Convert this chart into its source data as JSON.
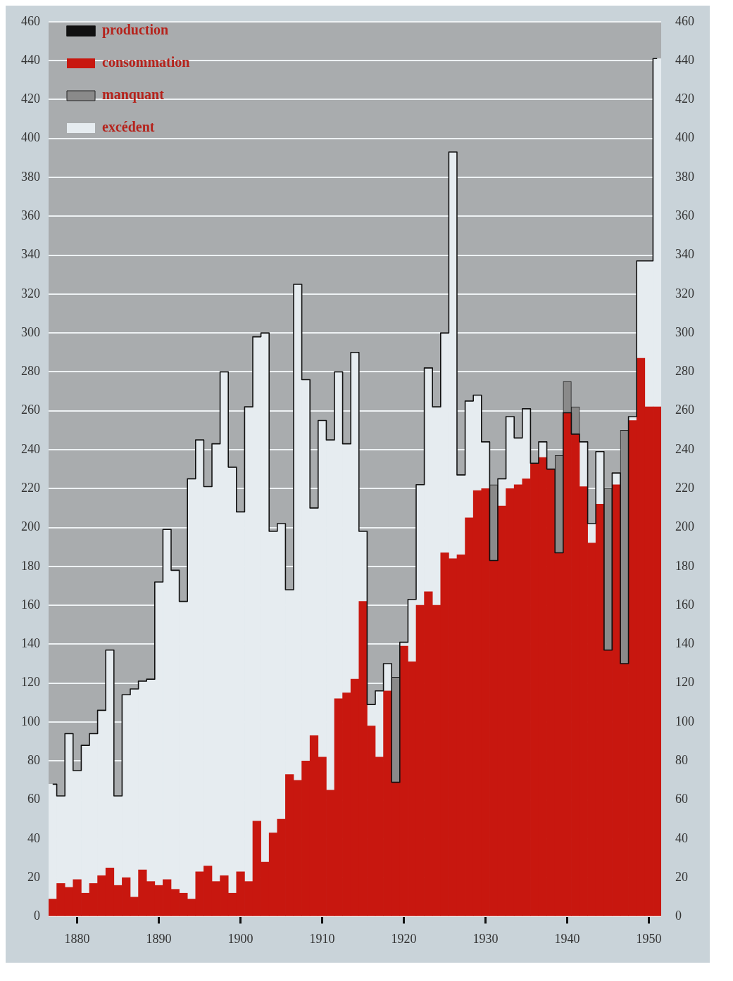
{
  "chart_data": {
    "type": "bar",
    "stacked": true,
    "grid": "y",
    "legend": "top left",
    "categories": [
      null,
      null,
      null,
      "1880",
      null,
      null,
      null,
      null,
      null,
      null,
      null,
      null,
      null,
      "1890",
      null,
      null,
      null,
      null,
      null,
      null,
      null,
      null,
      null,
      "1900",
      null,
      null,
      null,
      null,
      null,
      null,
      null,
      null,
      null,
      "1910",
      null,
      null,
      null,
      null,
      null,
      null,
      null,
      null,
      null,
      "1920",
      null,
      null,
      null,
      null,
      null,
      null,
      null,
      null,
      null,
      "1930",
      null,
      null,
      null,
      null,
      null,
      null,
      null,
      null,
      null,
      "1940",
      null,
      null,
      null,
      null,
      null,
      null,
      null,
      null,
      null,
      "1950",
      null
    ],
    "ylim": [
      0,
      460
    ],
    "yticks": [
      0,
      20,
      40,
      60,
      80,
      100,
      120,
      140,
      160,
      180,
      200,
      220,
      240,
      260,
      280,
      300,
      320,
      340,
      360,
      380,
      400,
      420,
      440,
      460
    ],
    "y2lim": [
      0,
      460
    ],
    "y2ticks": [
      0,
      20,
      40,
      60,
      80,
      100,
      120,
      140,
      160,
      180,
      200,
      220,
      240,
      260,
      280,
      300,
      320,
      340,
      360,
      380,
      400,
      420,
      440,
      460
    ],
    "series": [
      {
        "name": "production",
        "type": "step",
        "color": "#111111",
        "values": [
          68,
          62,
          94,
          75,
          88,
          94,
          106,
          137,
          62,
          114,
          117,
          121,
          122,
          172,
          199,
          178,
          162,
          225,
          245,
          221,
          243,
          280,
          231,
          208,
          262,
          298,
          300,
          198,
          202,
          168,
          325,
          276,
          210,
          255,
          245,
          280,
          243,
          290,
          198,
          109,
          116,
          130,
          69,
          141,
          163,
          222,
          282,
          262,
          300,
          393,
          227,
          265,
          268,
          244,
          183,
          225,
          257,
          246,
          261,
          233,
          244,
          230,
          187,
          259,
          248,
          244,
          202,
          239,
          137,
          228,
          130,
          257,
          337,
          337,
          441
        ]
      },
      {
        "name": "consommation",
        "color": "#c8170f",
        "values": [
          9,
          17,
          15,
          19,
          12,
          17,
          21,
          25,
          16,
          20,
          10,
          24,
          18,
          16,
          19,
          14,
          12,
          9,
          23,
          26,
          18,
          21,
          12,
          23,
          18,
          49,
          28,
          43,
          50,
          73,
          70,
          80,
          93,
          82,
          65,
          112,
          115,
          122,
          162,
          98,
          82,
          116,
          69,
          139,
          131,
          160,
          167,
          160,
          187,
          184,
          186,
          205,
          219,
          220,
          183,
          211,
          220,
          222,
          225,
          233,
          236,
          230,
          187,
          259,
          248,
          221,
          192,
          212,
          137,
          222,
          130,
          255,
          287,
          262,
          262
        ]
      },
      {
        "name": "manquant",
        "color": "#8a8a8a",
        "values": [
          null,
          null,
          null,
          null,
          null,
          null,
          null,
          null,
          null,
          null,
          null,
          null,
          null,
          null,
          null,
          null,
          null,
          null,
          null,
          null,
          null,
          null,
          null,
          null,
          null,
          null,
          null,
          null,
          null,
          null,
          null,
          null,
          null,
          null,
          null,
          null,
          null,
          null,
          null,
          null,
          null,
          null,
          54,
          null,
          null,
          null,
          null,
          null,
          null,
          null,
          null,
          null,
          null,
          null,
          39,
          null,
          null,
          null,
          null,
          null,
          null,
          null,
          50,
          16,
          14,
          null,
          null,
          null,
          83,
          null,
          120,
          null,
          null,
          null,
          null
        ]
      },
      {
        "name": "excédent",
        "color": "#e6ecf0",
        "values": [
          59,
          45,
          79,
          56,
          76,
          77,
          85,
          112,
          46,
          94,
          107,
          97,
          104,
          156,
          180,
          164,
          150,
          216,
          222,
          195,
          225,
          259,
          219,
          185,
          244,
          249,
          272,
          155,
          152,
          95,
          255,
          196,
          117,
          173,
          180,
          168,
          128,
          168,
          36,
          11,
          34,
          14,
          null,
          2,
          32,
          62,
          115,
          102,
          113,
          209,
          41,
          60,
          49,
          24,
          null,
          14,
          37,
          24,
          36,
          null,
          8,
          null,
          null,
          null,
          null,
          23,
          10,
          27,
          null,
          6,
          null,
          2,
          50,
          75,
          179
        ]
      }
    ]
  }
}
